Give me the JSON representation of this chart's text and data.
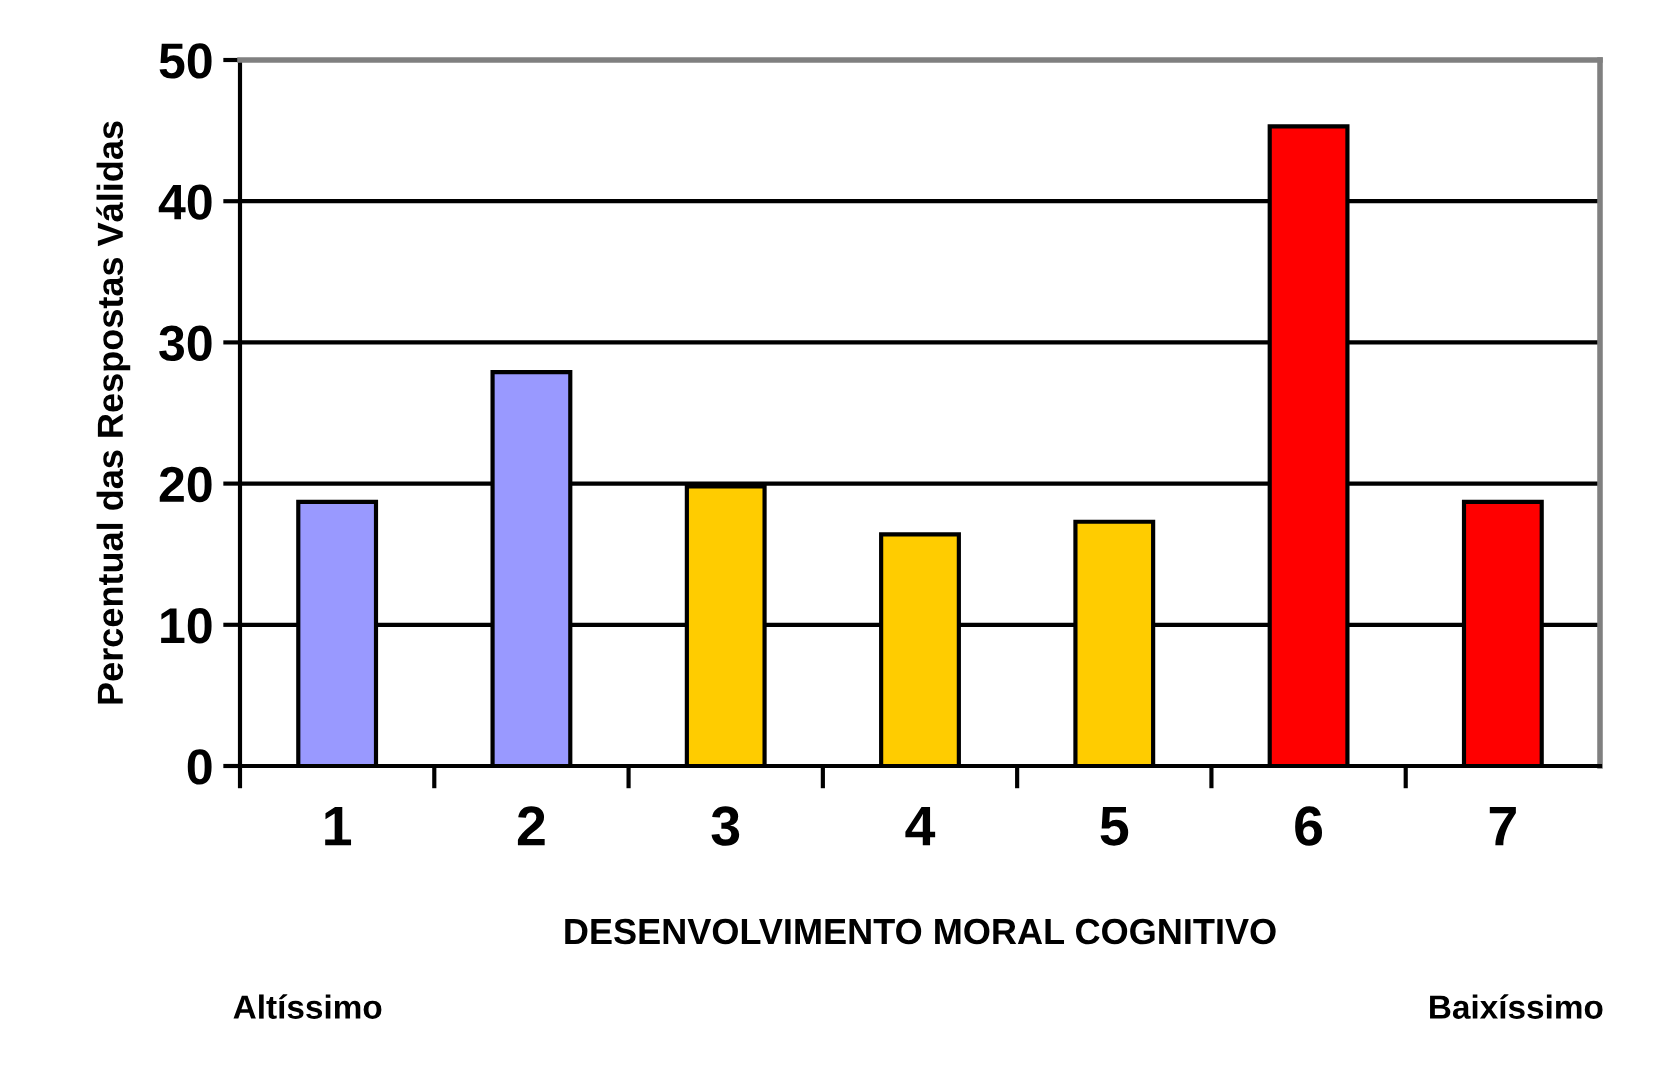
{
  "chart_data": {
    "type": "bar",
    "ylabel": "Percentual das Respostas Válidas",
    "xlabel": "DESENVOLVIMENTO MORAL COGNITIVO",
    "categories": [
      "1",
      "2",
      "3",
      "4",
      "5",
      "6",
      "7"
    ],
    "values": [
      18.7,
      27.9,
      19.8,
      16.4,
      17.3,
      45.3,
      18.7
    ],
    "colors": [
      "#9999ff",
      "#9999ff",
      "#ffcc00",
      "#ffcc00",
      "#ffcc00",
      "#ff0000",
      "#ff0000"
    ],
    "ylim": [
      0,
      50
    ],
    "yticks": [
      0,
      10,
      20,
      30,
      40,
      50
    ],
    "grid": "y",
    "annotations": [
      "Altíssimo",
      "Baixíssimo"
    ]
  }
}
